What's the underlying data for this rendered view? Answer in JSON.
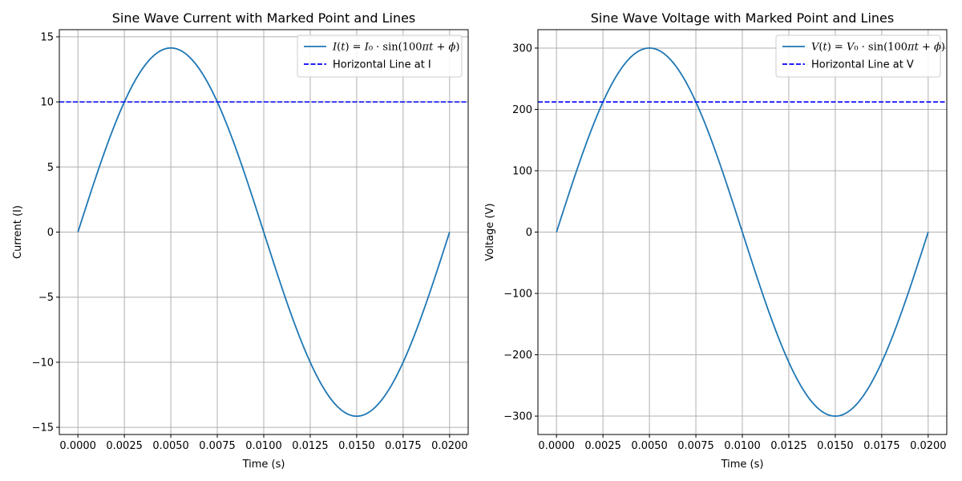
{
  "chart_data": [
    {
      "type": "line",
      "title": "Sine Wave Current with Marked Point and Lines",
      "xlabel": "Time (s)",
      "ylabel": "Current (I)",
      "xlim": [
        -0.001,
        0.021
      ],
      "ylim": [
        -15.55,
        15.55
      ],
      "xticks": [
        0,
        0.0025,
        0.005,
        0.0075,
        0.01,
        0.0125,
        0.015,
        0.0175,
        0.02
      ],
      "xtick_labels": [
        "0.0000",
        "0.0025",
        "0.0050",
        "0.0075",
        "0.0100",
        "0.0125",
        "0.0150",
        "0.0175",
        "0.0200"
      ],
      "yticks": [
        -15,
        -10,
        -5,
        0,
        5,
        10,
        15
      ],
      "ytick_labels": [
        "−15",
        "−10",
        "−5",
        "0",
        "5",
        "10",
        "15"
      ],
      "grid": true,
      "legend_position": "top-right",
      "series": [
        {
          "name": "I(t) = I₀ · sin(100πt + ϕ)",
          "kind": "sine",
          "amplitude": 14.142,
          "angular_frequency": 314.159,
          "x_range": [
            0,
            0.02
          ],
          "color": "#1f77b4",
          "style": "solid"
        },
        {
          "name": "Horizontal Line at I",
          "kind": "hline",
          "y": 10,
          "color": "#0000ff",
          "style": "dashed"
        }
      ]
    },
    {
      "type": "line",
      "title": "Sine Wave Voltage with Marked Point and Lines",
      "xlabel": "Time (s)",
      "ylabel": "Voltage (V)",
      "xlim": [
        -0.001,
        0.021
      ],
      "ylim": [
        -330,
        330
      ],
      "xticks": [
        0,
        0.0025,
        0.005,
        0.0075,
        0.01,
        0.0125,
        0.015,
        0.0175,
        0.02
      ],
      "xtick_labels": [
        "0.0000",
        "0.0025",
        "0.0050",
        "0.0075",
        "0.0100",
        "0.0125",
        "0.0150",
        "0.0175",
        "0.0200"
      ],
      "yticks": [
        -300,
        -200,
        -100,
        0,
        100,
        200,
        300
      ],
      "ytick_labels": [
        "−300",
        "−200",
        "−100",
        "0",
        "100",
        "200",
        "300"
      ],
      "grid": true,
      "legend_position": "top-right",
      "series": [
        {
          "name": "V(t) = V₀ · sin(100πt + ϕ)",
          "kind": "sine",
          "amplitude": 300,
          "angular_frequency": 314.159,
          "x_range": [
            0,
            0.02
          ],
          "color": "#1f77b4",
          "style": "solid"
        },
        {
          "name": "Horizontal Line at V",
          "kind": "hline",
          "y": 212.13,
          "color": "#0000ff",
          "style": "dashed"
        }
      ]
    }
  ]
}
